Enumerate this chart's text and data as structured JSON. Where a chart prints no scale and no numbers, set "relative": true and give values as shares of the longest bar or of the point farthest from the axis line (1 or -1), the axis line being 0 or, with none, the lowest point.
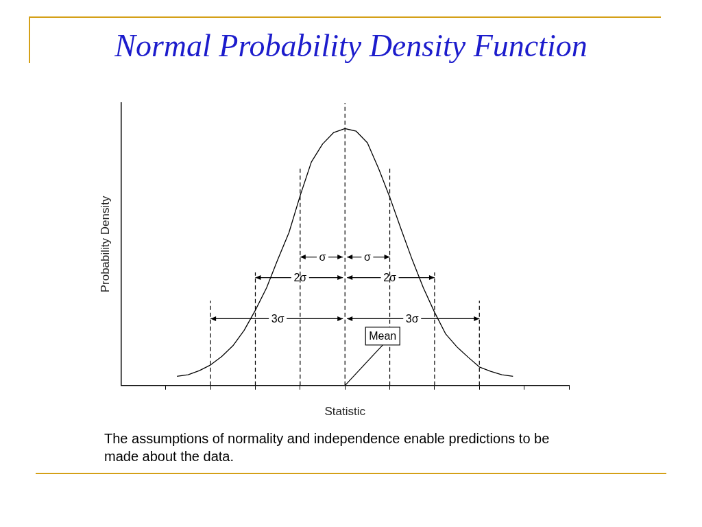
{
  "chart_data": {
    "type": "line",
    "title": "Normal Probability Density Function",
    "xlabel": "Statistic",
    "ylabel": "Probability Density",
    "relative": true,
    "categories": [
      null,
      null,
      null,
      null,
      null,
      null,
      null,
      null,
      null,
      null,
      null,
      null,
      null,
      null,
      null,
      null,
      null,
      null,
      null,
      null,
      null,
      null,
      null,
      null,
      null,
      null,
      null,
      null,
      null,
      null,
      null,
      null,
      null,
      null,
      null,
      null,
      null,
      null,
      null,
      null,
      null
    ],
    "series": [
      {
        "color": "#000000",
        "values": [
          null,
          null,
          null,
          null,
          null,
          0.036,
          0.042,
          0.058,
          0.08,
          0.113,
          0.155,
          0.215,
          0.293,
          0.38,
          0.49,
          0.595,
          0.739,
          0.87,
          0.94,
          0.985,
          1,
          0.99,
          0.945,
          0.845,
          0.733,
          0.61,
          0.49,
          0.38,
          0.285,
          0.2,
          0.15,
          0.11,
          0.072,
          0.055,
          0.042,
          0.036,
          null,
          null,
          null,
          null,
          null
        ]
      }
    ],
    "marker": "none",
    "line_style": "solid",
    "grid": "x",
    "annotations": [
      "σ",
      "σ",
      "2σ",
      "2σ",
      "3σ",
      "3σ",
      "Mean",
      "The assumptions of normality and independence enable predictions to be made about the data."
    ]
  }
}
